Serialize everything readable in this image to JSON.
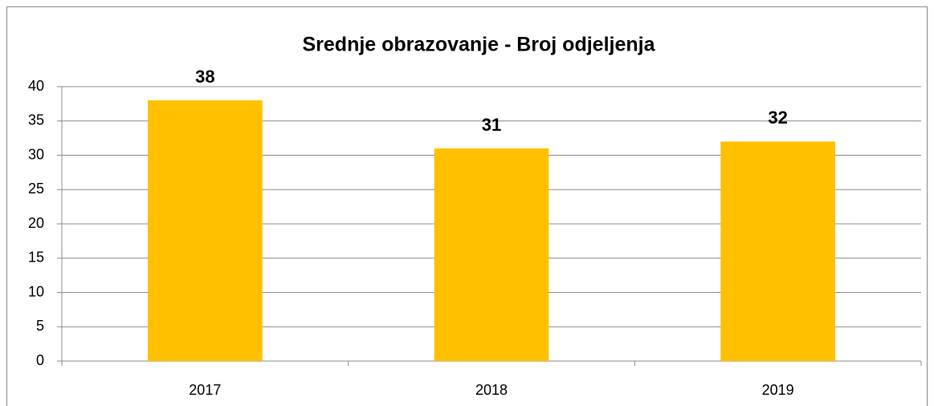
{
  "chart_data": {
    "type": "bar",
    "title": "Srednje obrazovanje - Broj odjeljenja",
    "categories": [
      "2017",
      "2018",
      "2019"
    ],
    "values": [
      38,
      31,
      32
    ],
    "color": "#ffc000",
    "ylim": [
      0,
      40
    ],
    "yticks": [
      0,
      5,
      10,
      15,
      20,
      25,
      30,
      35,
      40
    ],
    "grid": true
  }
}
